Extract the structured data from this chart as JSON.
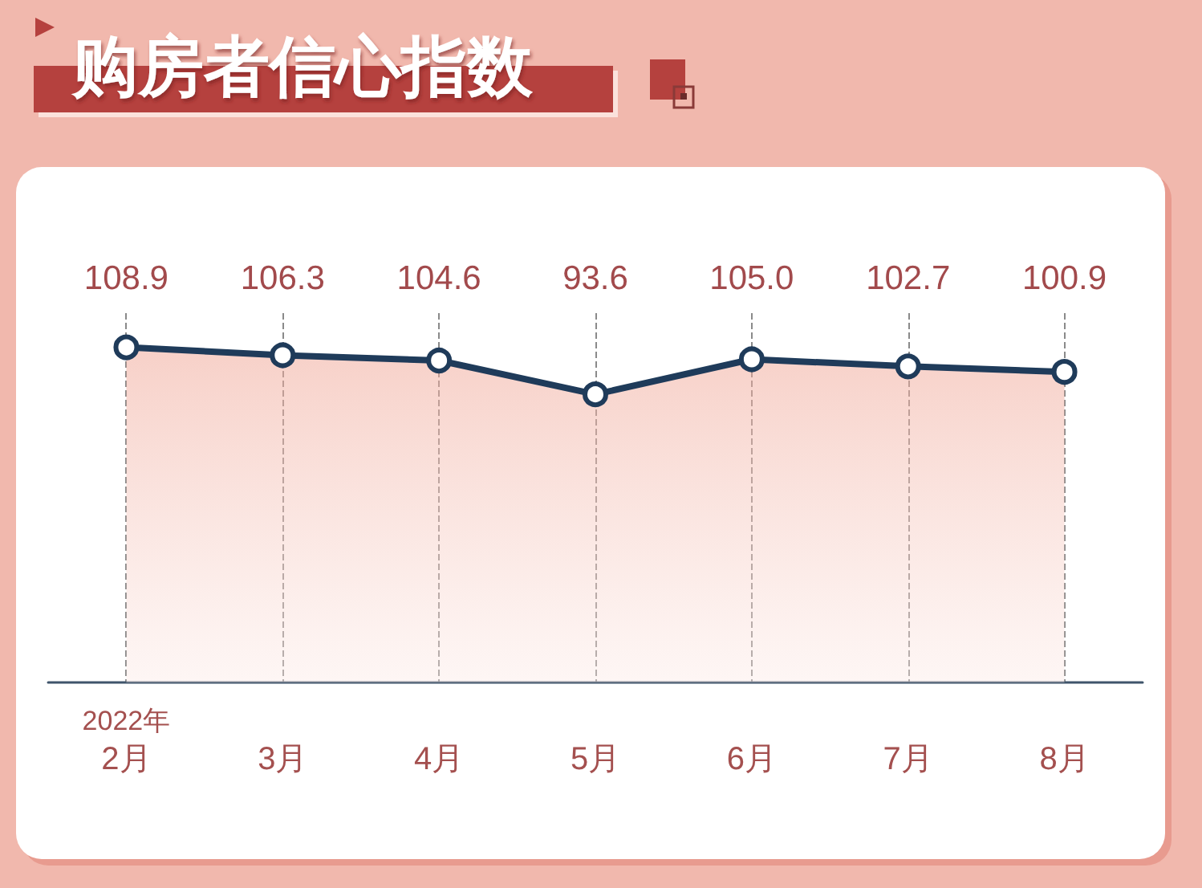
{
  "chart_data": {
    "type": "line",
    "title": "购房者信心指数",
    "categories": [
      "2022年\n2月",
      "3月",
      "4月",
      "5月",
      "6月",
      "7月",
      "8月"
    ],
    "values": [
      108.9,
      106.3,
      104.6,
      93.6,
      105.0,
      102.7,
      100.9
    ],
    "color": "#1f3b5a",
    "value_labels": [
      "108.9",
      "106.3",
      "104.6",
      "93.6",
      "105.0",
      "102.7",
      "100.9"
    ],
    "grid": "x",
    "marker": "circle",
    "line_style": "solid",
    "tick_labels": "x"
  }
}
